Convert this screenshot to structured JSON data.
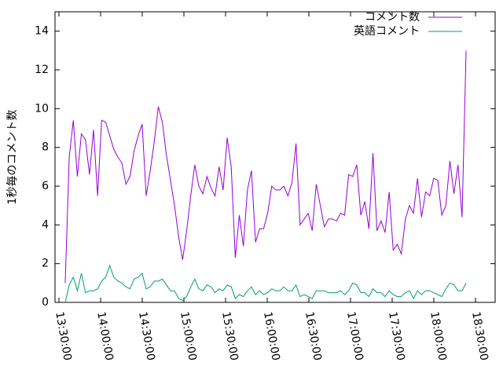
{
  "chart_data": {
    "type": "line",
    "ylabel": "1秒毎のコメント数",
    "x": [
      48870,
      49045,
      49220,
      49395,
      49570,
      49745,
      49920,
      50095,
      50270,
      50445,
      50620,
      50795,
      50970,
      51145,
      51320,
      51495,
      51670,
      51845,
      52020,
      52195,
      52370,
      52545,
      52720,
      52895,
      53070,
      53245,
      53420,
      53595,
      53770,
      53945,
      54120,
      54295,
      54470,
      54645,
      54820,
      54995,
      55170,
      55345,
      55520,
      55695,
      55870,
      56045,
      56220,
      56395,
      56570,
      56745,
      56920,
      57095,
      57270,
      57445,
      57620,
      57795,
      57970,
      58145,
      58320,
      58495,
      58670,
      58845,
      59020,
      59195,
      59370,
      59545,
      59720,
      59895,
      60070,
      60245,
      60420,
      60595,
      60770,
      60945,
      61120,
      61295,
      61470,
      61645,
      61820,
      61995,
      62170,
      62345,
      62520,
      62695,
      62870,
      63045,
      63220,
      63395,
      63570,
      63745,
      63920,
      64095,
      64270,
      64445,
      64620,
      64795,
      64970,
      65145,
      65320,
      65495,
      65670,
      65845,
      66020,
      66195
    ],
    "series": [
      {
        "name": "コメント数",
        "color": "#9400d3",
        "values": [
          1.0,
          7.5,
          9.4,
          6.5,
          8.7,
          8.4,
          6.6,
          8.9,
          5.5,
          9.4,
          9.3,
          8.6,
          7.9,
          7.5,
          7.2,
          6.1,
          6.5,
          7.8,
          8.6,
          9.2,
          5.5,
          6.8,
          8.3,
          10.1,
          9.3,
          7.6,
          6.3,
          5.0,
          3.4,
          2.2,
          3.7,
          5.5,
          7.1,
          6.0,
          5.6,
          6.5,
          5.9,
          5.5,
          7.0,
          5.8,
          8.5,
          7.0,
          2.3,
          4.5,
          2.9,
          5.8,
          6.8,
          3.1,
          3.8,
          3.8,
          4.6,
          6.0,
          5.8,
          5.8,
          6.0,
          5.5,
          6.2,
          8.2,
          4.0,
          4.3,
          4.6,
          3.7,
          6.1,
          5.0,
          3.9,
          4.3,
          4.3,
          4.2,
          4.6,
          4.5,
          6.6,
          6.5,
          7.1,
          4.5,
          5.2,
          3.8,
          7.7,
          3.7,
          4.2,
          3.6,
          5.7,
          2.7,
          3.0,
          2.5,
          4.3,
          5.0,
          4.6,
          6.4,
          4.4,
          5.7,
          5.5,
          6.4,
          6.3,
          4.5,
          5.0,
          7.3,
          5.6,
          7.1,
          4.4,
          13.0
        ]
      },
      {
        "name": "英語コメント",
        "color": "#009e73",
        "values": [
          0.0,
          0.9,
          1.3,
          0.6,
          1.5,
          0.5,
          0.6,
          0.6,
          0.7,
          1.1,
          1.3,
          1.9,
          1.3,
          1.1,
          1.0,
          0.8,
          0.7,
          1.2,
          1.3,
          1.5,
          0.7,
          0.8,
          1.1,
          1.1,
          1.2,
          0.9,
          0.6,
          0.6,
          0.2,
          0.1,
          0.3,
          0.8,
          1.2,
          0.7,
          0.6,
          0.9,
          0.8,
          0.5,
          0.7,
          0.6,
          0.9,
          0.8,
          0.2,
          0.4,
          0.3,
          0.6,
          0.8,
          0.4,
          0.6,
          0.4,
          0.5,
          0.7,
          0.6,
          0.6,
          0.8,
          0.6,
          0.6,
          0.9,
          0.3,
          0.4,
          0.3,
          0.2,
          0.6,
          0.6,
          0.6,
          0.5,
          0.5,
          0.5,
          0.6,
          0.4,
          0.6,
          1.0,
          0.9,
          0.5,
          0.5,
          0.3,
          0.7,
          0.5,
          0.5,
          0.3,
          0.6,
          0.4,
          0.3,
          0.3,
          0.5,
          0.6,
          0.2,
          0.6,
          0.4,
          0.6,
          0.6,
          0.5,
          0.4,
          0.3,
          0.7,
          1.0,
          0.9,
          0.6,
          0.6,
          1.0
        ]
      }
    ],
    "xlim": [
      48430,
      67450
    ],
    "xticks": [
      {
        "value": 48600,
        "label": "13:30:00"
      },
      {
        "value": 50400,
        "label": "14:00:00"
      },
      {
        "value": 52200,
        "label": "14:30:00"
      },
      {
        "value": 54000,
        "label": "15:00:00"
      },
      {
        "value": 55800,
        "label": "15:30:00"
      },
      {
        "value": 57600,
        "label": "16:00:00"
      },
      {
        "value": 59400,
        "label": "16:30:00"
      },
      {
        "value": 61200,
        "label": "17:00:00"
      },
      {
        "value": 63000,
        "label": "17:30:00"
      },
      {
        "value": 64800,
        "label": "18:00:00"
      },
      {
        "value": 66600,
        "label": "18:30:00"
      }
    ],
    "ylim": [
      0,
      15
    ],
    "yticks": [
      0,
      2,
      4,
      6,
      8,
      10,
      12,
      14
    ],
    "legend": "upper right",
    "grid": false
  }
}
